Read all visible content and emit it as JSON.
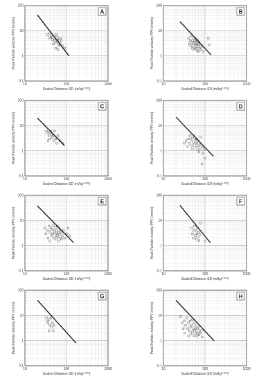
{
  "chart_data": [
    {
      "type": "scatter",
      "panel_label": "A",
      "xlabel": "Scaled Distance SD (m/kg",
      "xlabel_sup": "0.333",
      "xlabel_close": ")",
      "ylabel": "Peak Particle velocity PPV (mm/s)",
      "xscale": "log",
      "yscale": "log",
      "xlim": [
        10,
        1000
      ],
      "ylim": [
        0.1,
        100
      ],
      "xticks": [
        "10",
        "100",
        "1000"
      ],
      "yticks": [
        "0.1",
        "1",
        "10",
        "100"
      ],
      "grid": true,
      "fit_line": [
        [
          20,
          42
        ],
        [
          115,
          1
        ]
      ],
      "points": [
        [
          35,
          7
        ],
        [
          38,
          5
        ],
        [
          40,
          8
        ],
        [
          42,
          5.5
        ],
        [
          44,
          6
        ],
        [
          46,
          4.5
        ],
        [
          48,
          3
        ],
        [
          50,
          5
        ],
        [
          52,
          4
        ],
        [
          54,
          3.5
        ],
        [
          56,
          7
        ],
        [
          58,
          6
        ],
        [
          60,
          4
        ],
        [
          62,
          5
        ],
        [
          64,
          3
        ],
        [
          66,
          2.5
        ],
        [
          68,
          4
        ],
        [
          70,
          3
        ],
        [
          55,
          2
        ],
        [
          62,
          1.8
        ],
        [
          72,
          5
        ],
        [
          75,
          4
        ],
        [
          80,
          2.5
        ],
        [
          90,
          2
        ]
      ]
    },
    {
      "type": "scatter",
      "panel_label": "B",
      "xlabel": "Scaled Distance SD (m/kg",
      "xlabel_sup": "0.333",
      "xlabel_close": ")",
      "ylabel": "Peak Particle velocity PPV (mm/s)",
      "xscale": "log",
      "yscale": "log",
      "xlim": [
        10,
        1000
      ],
      "ylim": [
        0.1,
        100
      ],
      "xticks": [
        "10",
        "100",
        "1000"
      ],
      "yticks": [
        "0.1",
        "1",
        "10",
        "100"
      ],
      "grid": true,
      "fit_line": [
        [
          25,
          23
        ],
        [
          140,
          1.1
        ]
      ],
      "points": [
        [
          40,
          5
        ],
        [
          42,
          3
        ],
        [
          44,
          4
        ],
        [
          45,
          2.5
        ],
        [
          46,
          6
        ],
        [
          48,
          3.5
        ],
        [
          50,
          2
        ],
        [
          50,
          4
        ],
        [
          52,
          3
        ],
        [
          53,
          5
        ],
        [
          54,
          2.5
        ],
        [
          55,
          1.8
        ],
        [
          56,
          3.5
        ],
        [
          58,
          4
        ],
        [
          58,
          2.2
        ],
        [
          60,
          3
        ],
        [
          60,
          5
        ],
        [
          62,
          2
        ],
        [
          63,
          3.8
        ],
        [
          64,
          2.8
        ],
        [
          65,
          1.6
        ],
        [
          66,
          4.2
        ],
        [
          68,
          3
        ],
        [
          70,
          2.4
        ],
        [
          70,
          1.5
        ],
        [
          72,
          3.5
        ],
        [
          74,
          2
        ],
        [
          76,
          2.8
        ],
        [
          80,
          1.8
        ],
        [
          85,
          2.4
        ],
        [
          90,
          1.5
        ],
        [
          120,
          5
        ],
        [
          125,
          2.8
        ]
      ]
    },
    {
      "type": "scatter",
      "panel_label": "C",
      "xlabel": "Scaled Distance SD (m/kg",
      "xlabel_sup": "0.333",
      "xlabel_close": ")",
      "ylabel": "Peak Particle velocity PPV (mm/s)",
      "xscale": "log",
      "yscale": "log",
      "xlim": [
        10,
        1000
      ],
      "ylim": [
        0.1,
        100
      ],
      "xticks": [
        "10",
        "100",
        "1000"
      ],
      "yticks": [
        "0.1",
        "1",
        "10",
        "100"
      ],
      "grid": true,
      "fit_line": [
        [
          20,
          20
        ],
        [
          90,
          1.6
        ]
      ],
      "points": [
        [
          33,
          6
        ],
        [
          35,
          5
        ],
        [
          36,
          2.5
        ],
        [
          38,
          4
        ],
        [
          40,
          5.5
        ],
        [
          40,
          3
        ],
        [
          42,
          6
        ],
        [
          44,
          4.5
        ],
        [
          46,
          3.5
        ],
        [
          48,
          4
        ],
        [
          50,
          2.5
        ],
        [
          52,
          6
        ],
        [
          55,
          3
        ],
        [
          58,
          2
        ],
        [
          62,
          4
        ],
        [
          70,
          2.5
        ],
        [
          80,
          2
        ]
      ]
    },
    {
      "type": "scatter",
      "panel_label": "D",
      "xlabel": "Scaled Distance SD (m/kg",
      "xlabel_sup": "0.333",
      "xlabel_close": ")",
      "ylabel": "Peak Particle velocity PPV (mm/s)",
      "xscale": "log",
      "yscale": "log",
      "xlim": [
        10,
        1000
      ],
      "ylim": [
        0.1,
        100
      ],
      "xticks": [
        "10",
        "100",
        "1000"
      ],
      "yticks": [
        "0.1",
        "1",
        "10",
        "100"
      ],
      "grid": true,
      "fit_line": [
        [
          20,
          22
        ],
        [
          160,
          0.6
        ]
      ],
      "points": [
        [
          32,
          2
        ],
        [
          35,
          2.5
        ],
        [
          38,
          1.5
        ],
        [
          40,
          3
        ],
        [
          42,
          2
        ],
        [
          44,
          4
        ],
        [
          46,
          2.8
        ],
        [
          48,
          1.6
        ],
        [
          50,
          3.2
        ],
        [
          50,
          1.2
        ],
        [
          52,
          2.2
        ],
        [
          55,
          4
        ],
        [
          56,
          1.8
        ],
        [
          58,
          2.6
        ],
        [
          60,
          1.4
        ],
        [
          62,
          3
        ],
        [
          64,
          2
        ],
        [
          66,
          1.1
        ],
        [
          68,
          2.5
        ],
        [
          70,
          1.6
        ],
        [
          72,
          0.9
        ],
        [
          75,
          1.8
        ],
        [
          78,
          1.2
        ],
        [
          80,
          3.5
        ],
        [
          85,
          1.4
        ],
        [
          90,
          0.8
        ],
        [
          95,
          1.1
        ],
        [
          100,
          0.5
        ],
        [
          85,
          0.3
        ]
      ]
    },
    {
      "type": "scatter",
      "panel_label": "E",
      "xlabel": "Scaled Distance SD (m/kg",
      "xlabel_sup": "0.333",
      "xlabel_close": ")",
      "ylabel": "Peak Particle velocity PPV (mm/s)",
      "xscale": "log",
      "yscale": "log",
      "xlim": [
        10,
        1000
      ],
      "ylim": [
        0.1,
        100
      ],
      "xticks": [
        "10",
        "100",
        "1000"
      ],
      "yticks": [
        "0.1",
        "1",
        "10",
        "100"
      ],
      "grid": true,
      "fit_line": [
        [
          20,
          38
        ],
        [
          150,
          1.3
        ]
      ],
      "points": [
        [
          30,
          5
        ],
        [
          32,
          3
        ],
        [
          35,
          4
        ],
        [
          36,
          2
        ],
        [
          38,
          6
        ],
        [
          40,
          3.5
        ],
        [
          40,
          1.5
        ],
        [
          42,
          5
        ],
        [
          44,
          2.5
        ],
        [
          45,
          4.5
        ],
        [
          46,
          3
        ],
        [
          48,
          6.5
        ],
        [
          50,
          2
        ],
        [
          50,
          4
        ],
        [
          52,
          3.2
        ],
        [
          54,
          5.5
        ],
        [
          55,
          2.5
        ],
        [
          56,
          1.8
        ],
        [
          58,
          4
        ],
        [
          60,
          3
        ],
        [
          60,
          6
        ],
        [
          62,
          2.2
        ],
        [
          64,
          3.5
        ],
        [
          65,
          1.5
        ],
        [
          66,
          5
        ],
        [
          68,
          2.8
        ],
        [
          70,
          4
        ],
        [
          72,
          2
        ],
        [
          74,
          3.2
        ],
        [
          76,
          1.8
        ],
        [
          80,
          2.5
        ],
        [
          85,
          4
        ],
        [
          90,
          2
        ],
        [
          100,
          3
        ],
        [
          110,
          5
        ],
        [
          120,
          2.5
        ]
      ]
    },
    {
      "type": "scatter",
      "panel_label": "F",
      "xlabel": "Scaled Distance SD (m/kg",
      "xlabel_sup": "0.333",
      "xlabel_close": ")",
      "ylabel": "Peak Particle velocity PPV (mm/s)",
      "xscale": "log",
      "yscale": "log",
      "xlim": [
        10,
        1000
      ],
      "ylim": [
        0.1,
        100
      ],
      "xticks": [
        "10",
        "100",
        "1000"
      ],
      "yticks": [
        "0.1",
        "1",
        "10",
        "100"
      ],
      "grid": true,
      "fit_line": [
        [
          25,
          40
        ],
        [
          135,
          1.3
        ]
      ],
      "points": [
        [
          48,
          5
        ],
        [
          50,
          3
        ],
        [
          52,
          2
        ],
        [
          54,
          4
        ],
        [
          56,
          6
        ],
        [
          58,
          2.5
        ],
        [
          60,
          4
        ],
        [
          62,
          1.8
        ],
        [
          64,
          3
        ],
        [
          66,
          5
        ],
        [
          68,
          2.2
        ],
        [
          70,
          3.5
        ],
        [
          72,
          1.6
        ],
        [
          75,
          2.8
        ],
        [
          78,
          8
        ],
        [
          100,
          1.5
        ]
      ]
    },
    {
      "type": "scatter",
      "panel_label": "G",
      "xlabel": "Scaled Distance SD (m/kg",
      "xlabel_sup": "0.333",
      "xlabel_close": ")",
      "ylabel": "Peak Particle velocity PPV (mm/s)",
      "xscale": "log",
      "yscale": "log",
      "xlim": [
        10,
        1000
      ],
      "ylim": [
        0.1,
        100
      ],
      "xticks": [
        "10",
        "100",
        "1000"
      ],
      "yticks": [
        "0.1",
        "1",
        "10",
        "100"
      ],
      "grid": true,
      "fit_line": [
        [
          20,
          40
        ],
        [
          170,
          0.8
        ]
      ],
      "points": [
        [
          33,
          8
        ],
        [
          35,
          6
        ],
        [
          36,
          5
        ],
        [
          38,
          7
        ],
        [
          40,
          4
        ],
        [
          42,
          8
        ],
        [
          44,
          3.5
        ],
        [
          46,
          5
        ],
        [
          48,
          2.5
        ],
        [
          50,
          4
        ],
        [
          38,
          2.5
        ]
      ]
    },
    {
      "type": "scatter",
      "panel_label": "H",
      "xlabel": "Scaled Distance SD (m/kg",
      "xlabel_sup": "0.333",
      "xlabel_close": ")",
      "ylabel": "Peak Particle velocity PPV (mm/s)",
      "xscale": "log",
      "yscale": "log",
      "xlim": [
        10,
        1000
      ],
      "ylim": [
        0.1,
        100
      ],
      "xticks": [
        "10",
        "100",
        "1000"
      ],
      "yticks": [
        "0.1",
        "1",
        "10",
        "100"
      ],
      "grid": true,
      "fit_line": [
        [
          20,
          40
        ],
        [
          165,
          1
        ]
      ],
      "points": [
        [
          26,
          9
        ],
        [
          28,
          5
        ],
        [
          30,
          3
        ],
        [
          32,
          6
        ],
        [
          33,
          2
        ],
        [
          34,
          4
        ],
        [
          36,
          8
        ],
        [
          38,
          3
        ],
        [
          40,
          5
        ],
        [
          40,
          1.5
        ],
        [
          42,
          2.5
        ],
        [
          44,
          6
        ],
        [
          45,
          3.5
        ],
        [
          46,
          1.8
        ],
        [
          48,
          4
        ],
        [
          50,
          2.2
        ],
        [
          50,
          7
        ],
        [
          52,
          3
        ],
        [
          54,
          5
        ],
        [
          55,
          1.6
        ],
        [
          56,
          2.6
        ],
        [
          58,
          4.2
        ],
        [
          60,
          1.9
        ],
        [
          60,
          3.2
        ],
        [
          62,
          2.4
        ],
        [
          64,
          1.5
        ],
        [
          66,
          3
        ],
        [
          68,
          2
        ],
        [
          70,
          3.5
        ],
        [
          72,
          1.7
        ],
        [
          75,
          2.5
        ],
        [
          80,
          2
        ],
        [
          85,
          1.4
        ],
        [
          90,
          2.6
        ]
      ]
    }
  ]
}
